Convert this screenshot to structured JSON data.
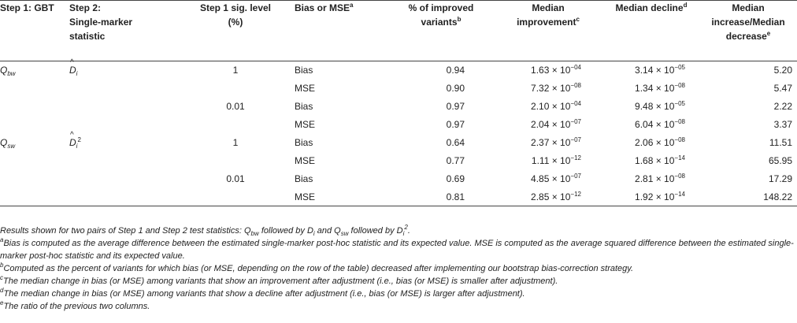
{
  "header": {
    "col1": "Step 1: GBT",
    "col2_line1": "Step 2:",
    "col2_line2": "Single-marker",
    "col2_line3": "statistic",
    "col3_line1": "Step 1 sig. level",
    "col3_line2": "(%)",
    "col4": "Bias or MSE",
    "col4_sup": "a",
    "col5_line1": "% of improved",
    "col5_line2": "variants",
    "col5_sup": "b",
    "col6_line1": "Median",
    "col6_line2": "improvement",
    "col6_sup": "c",
    "col7": "Median decline",
    "col7_sup": "d",
    "col8_line1": "Median",
    "col8_line2": "increase/Median",
    "col8_line3": "decrease",
    "col8_sup": "e"
  },
  "groups": [
    {
      "gbt_main": "Q",
      "gbt_sub": "bw",
      "stat_main": "D",
      "stat_sub": "i",
      "stat_sup": ""
    },
    {
      "gbt_main": "Q",
      "gbt_sub": "sw",
      "stat_main": "D",
      "stat_sub": "i",
      "stat_sup": "2"
    }
  ],
  "rows": [
    {
      "sig": "1",
      "measure": "Bias",
      "pct": "0.94",
      "imp_m": "1.63",
      "imp_e": "−04",
      "dec_m": "3.14",
      "dec_e": "−05",
      "ratio": "5.20"
    },
    {
      "sig": "",
      "measure": "MSE",
      "pct": "0.90",
      "imp_m": "7.32",
      "imp_e": "−08",
      "dec_m": "1.34",
      "dec_e": "−08",
      "ratio": "5.47"
    },
    {
      "sig": "0.01",
      "measure": "Bias",
      "pct": "0.97",
      "imp_m": "2.10",
      "imp_e": "−04",
      "dec_m": "9.48",
      "dec_e": "−05",
      "ratio": "2.22"
    },
    {
      "sig": "",
      "measure": "MSE",
      "pct": "0.97",
      "imp_m": "2.04",
      "imp_e": "−07",
      "dec_m": "6.04",
      "dec_e": "−08",
      "ratio": "3.37"
    },
    {
      "sig": "1",
      "measure": "Bias",
      "pct": "0.64",
      "imp_m": "2.37",
      "imp_e": "−07",
      "dec_m": "2.06",
      "dec_e": "−08",
      "ratio": "11.51"
    },
    {
      "sig": "",
      "measure": "MSE",
      "pct": "0.77",
      "imp_m": "1.11",
      "imp_e": "−12",
      "dec_m": "1.68",
      "dec_e": "−14",
      "ratio": "65.95"
    },
    {
      "sig": "0.01",
      "measure": "Bias",
      "pct": "0.69",
      "imp_m": "4.85",
      "imp_e": "−07",
      "dec_m": "2.81",
      "dec_e": "−08",
      "ratio": "17.29"
    },
    {
      "sig": "",
      "measure": "MSE",
      "pct": "0.81",
      "imp_m": "2.85",
      "imp_e": "−12",
      "dec_m": "1.92",
      "dec_e": "−14",
      "ratio": "148.22"
    }
  ],
  "sci_times": "× 10",
  "notes": {
    "results_prefix": "Results shown for two pairs of Step 1 and Step 2 test statistics: ",
    "q_main": "Q",
    "q_bw": "bw",
    "followed_by": " followed by ",
    "d_main": "D",
    "d_sub": "i",
    "and_word": " and ",
    "q_sw": "sw",
    "d_sq": "2",
    "period": ".",
    "a_mark": "a",
    "a_text": "Bias is computed as the average difference between the estimated single-marker post-hoc statistic and its expected value. MSE is computed as the average squared difference between the estimated single-marker post-hoc statistic and its expected value.",
    "b_mark": "b",
    "b_text": "Computed as the percent of variants for which bias (or MSE, depending on the row of the table) decreased after implementing our bootstrap bias-correction strategy.",
    "c_mark": "c",
    "c_text": "The median change in bias (or MSE) among variants that show an improvement after adjustment (i.e., bias (or MSE) is smaller after adjustment).",
    "d_mark": "d",
    "d_text": "The median change in bias (or MSE) among variants that show a decline after adjustment (i.e., bias (or MSE) is larger after adjustment).",
    "e_mark": "e",
    "e_text": "The ratio of the previous two columns."
  }
}
